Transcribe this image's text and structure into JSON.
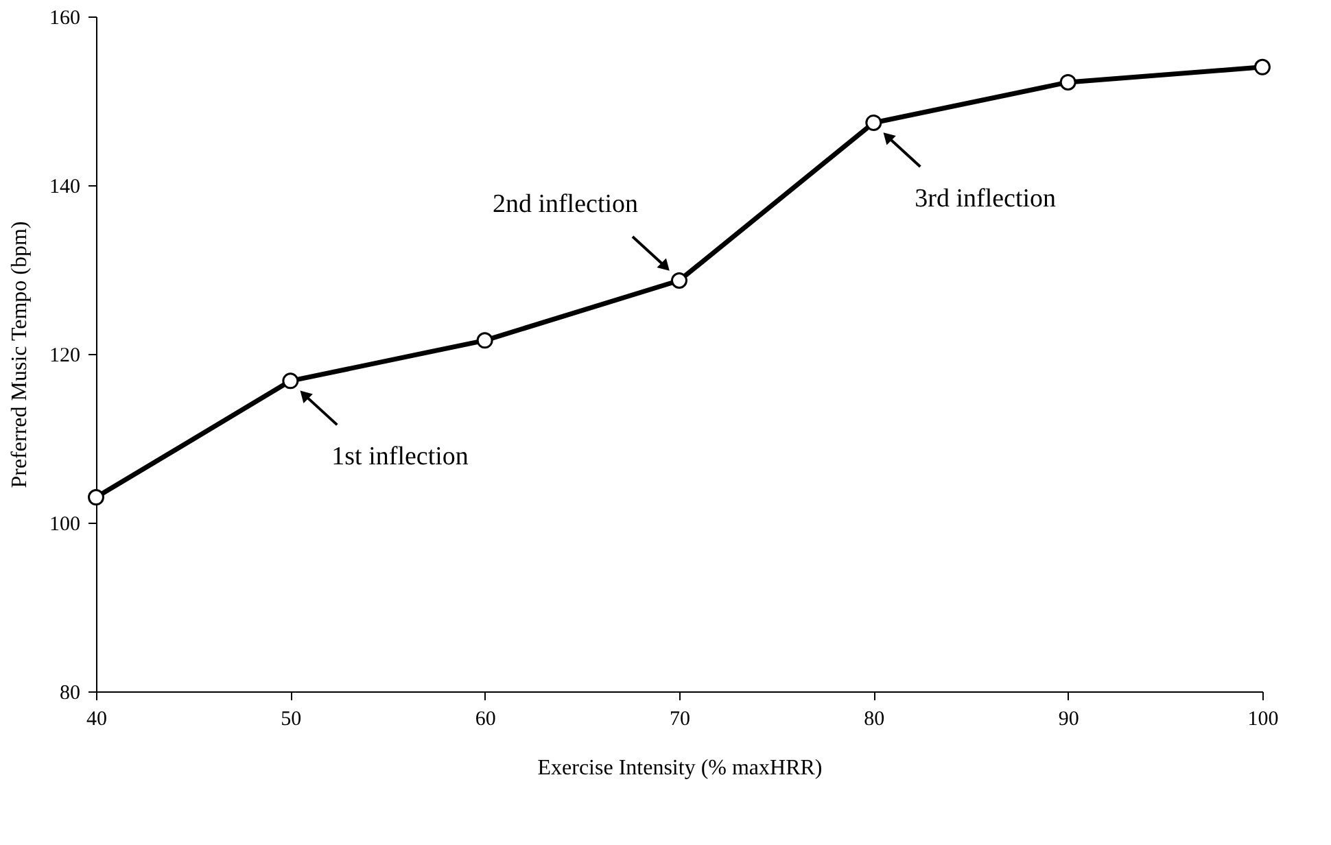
{
  "chart_data": {
    "type": "line",
    "xlabel": "Exercise Intensity (% maxHRR)",
    "ylabel": "Preferred Music Tempo (bpm)",
    "x": [
      40,
      50,
      60,
      70,
      80,
      90,
      100
    ],
    "series": [
      {
        "color": "#000000",
        "values": [
          103.0,
          116.8,
          121.6,
          128.7,
          147.4,
          152.2,
          154.0
        ]
      }
    ],
    "xlim": [
      40,
      100
    ],
    "xticks": [
      40,
      50,
      60,
      70,
      80,
      90,
      100
    ],
    "ylim": [
      80,
      160
    ],
    "yticks": [
      80,
      100,
      120,
      140,
      160
    ],
    "grid": false,
    "marker": "circle",
    "line_style": "solid",
    "annotations": [
      {
        "text": "1st inflection",
        "x": 50,
        "y": 116.8
      },
      {
        "text": "2nd inflection",
        "x": 70,
        "y": 128.7
      },
      {
        "text": "3rd inflection",
        "x": 80,
        "y": 147.4
      }
    ]
  }
}
